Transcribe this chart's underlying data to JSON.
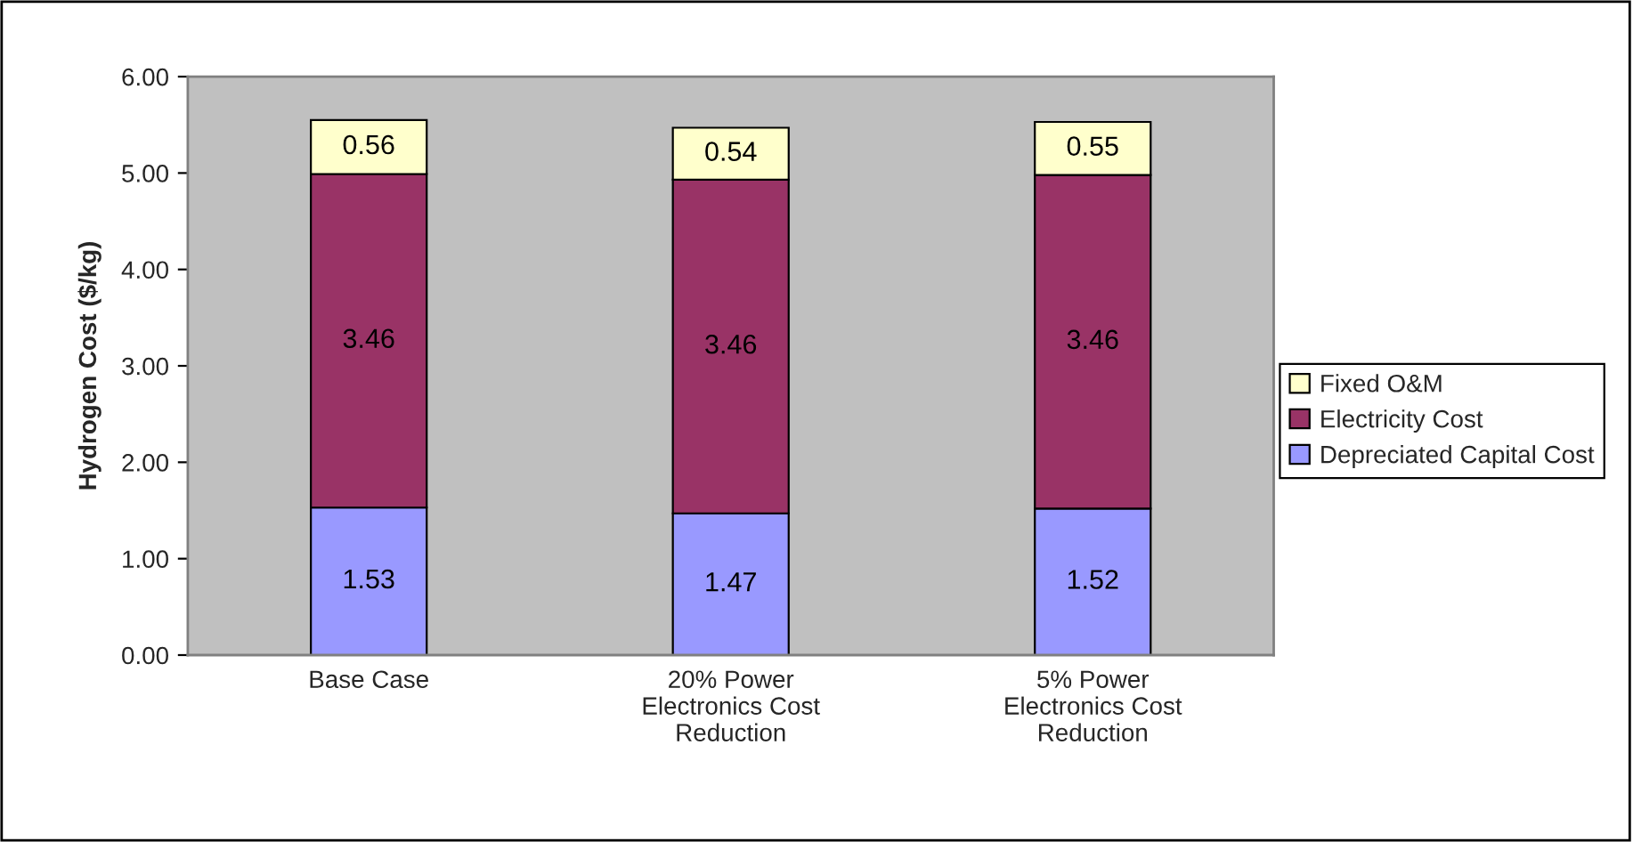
{
  "chart_data": {
    "type": "bar",
    "stacked": true,
    "ylabel": "Hydrogen Cost ($/kg)",
    "categories": [
      "Base Case",
      "20% Power\nElectronics Cost\nReduction",
      "5% Power\nElectronics Cost\nReduction"
    ],
    "series": [
      {
        "name": "Depreciated Capital Cost",
        "color": "#9999ff",
        "values": [
          1.53,
          1.47,
          1.52
        ]
      },
      {
        "name": "Electricity Cost",
        "color": "#993366",
        "values": [
          3.46,
          3.46,
          3.46
        ]
      },
      {
        "name": "Fixed O&M",
        "color": "#ffffcc",
        "values": [
          0.56,
          0.54,
          0.55
        ]
      }
    ],
    "ylim": [
      0,
      6
    ],
    "yticks": [
      {
        "value": 0,
        "label": "0.00"
      },
      {
        "value": 1,
        "label": "1.00"
      },
      {
        "value": 2,
        "label": "2.00"
      },
      {
        "value": 3,
        "label": "3.00"
      },
      {
        "value": 4,
        "label": "4.00"
      },
      {
        "value": 5,
        "label": "5.00"
      },
      {
        "value": 6,
        "label": "6.00"
      }
    ],
    "data_labels": true,
    "legend": "right",
    "grid": false
  }
}
